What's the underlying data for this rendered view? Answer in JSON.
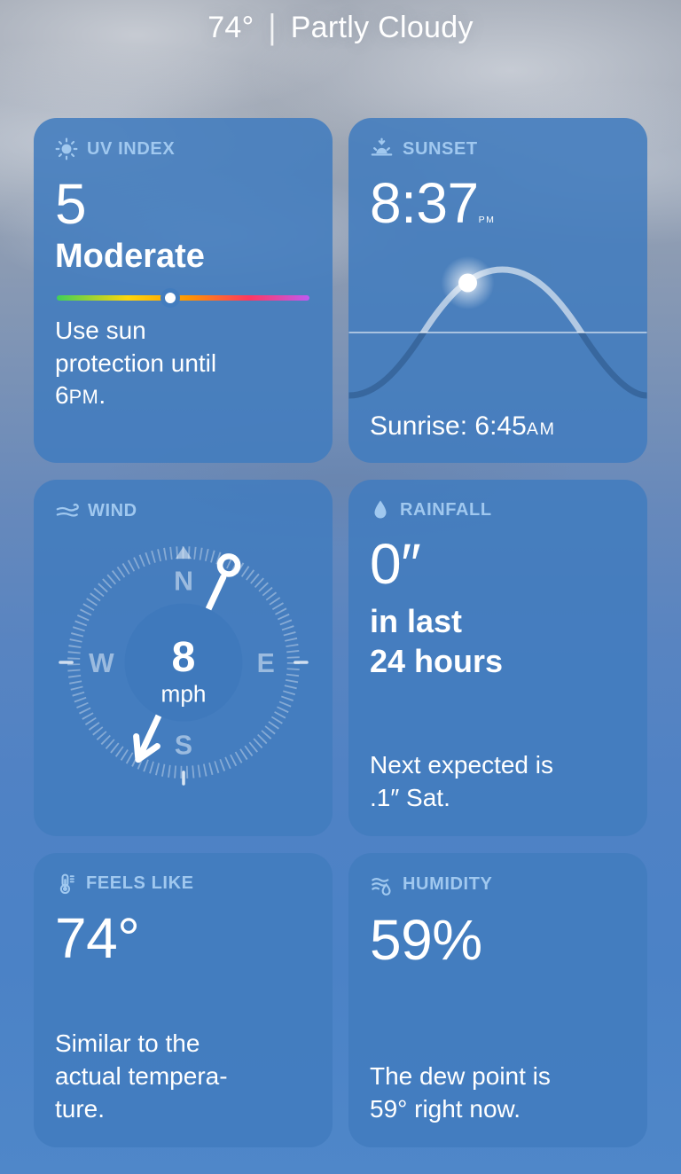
{
  "header": {
    "temperature": "74°",
    "separator": "|",
    "condition": "Partly Cloudy"
  },
  "colors": {
    "card_background": "#427cbe",
    "card_label": "#a0c8ef",
    "text": "#ffffff",
    "uv_scale": [
      "#3fd158",
      "#ffd60a",
      "#ff9500",
      "#ff375f",
      "#bf5af2"
    ]
  },
  "cards": {
    "uv": {
      "title": "UV INDEX",
      "value": "5",
      "level": "Moderate",
      "advice_prefix": "Use sun\nprotection until\n6",
      "advice_meridiem": "PM",
      "advice_period": ".",
      "scale_position_pct": 45
    },
    "sunset": {
      "title": "SUNSET",
      "time": "8:37",
      "time_meridiem": "PM",
      "sunrise_label": "Sunrise: 6:45",
      "sunrise_meridiem": "AM"
    },
    "wind": {
      "title": "WIND",
      "speed": "8",
      "unit": "mph",
      "cardinal_n": "N",
      "cardinal_e": "E",
      "cardinal_s": "S",
      "cardinal_w": "W"
    },
    "rainfall": {
      "title": "RAINFALL",
      "amount": "0″",
      "period_bold": "in last\n24 hours",
      "forecast": "Next expected is\n.1″ Sat."
    },
    "feels_like": {
      "title": "FEELS LIKE",
      "value": "74°",
      "note": "Similar to the\nactual tempera-\nture."
    },
    "humidity": {
      "title": "HUMIDITY",
      "value": "59%",
      "note": "The dew point is\n59° right now."
    }
  }
}
